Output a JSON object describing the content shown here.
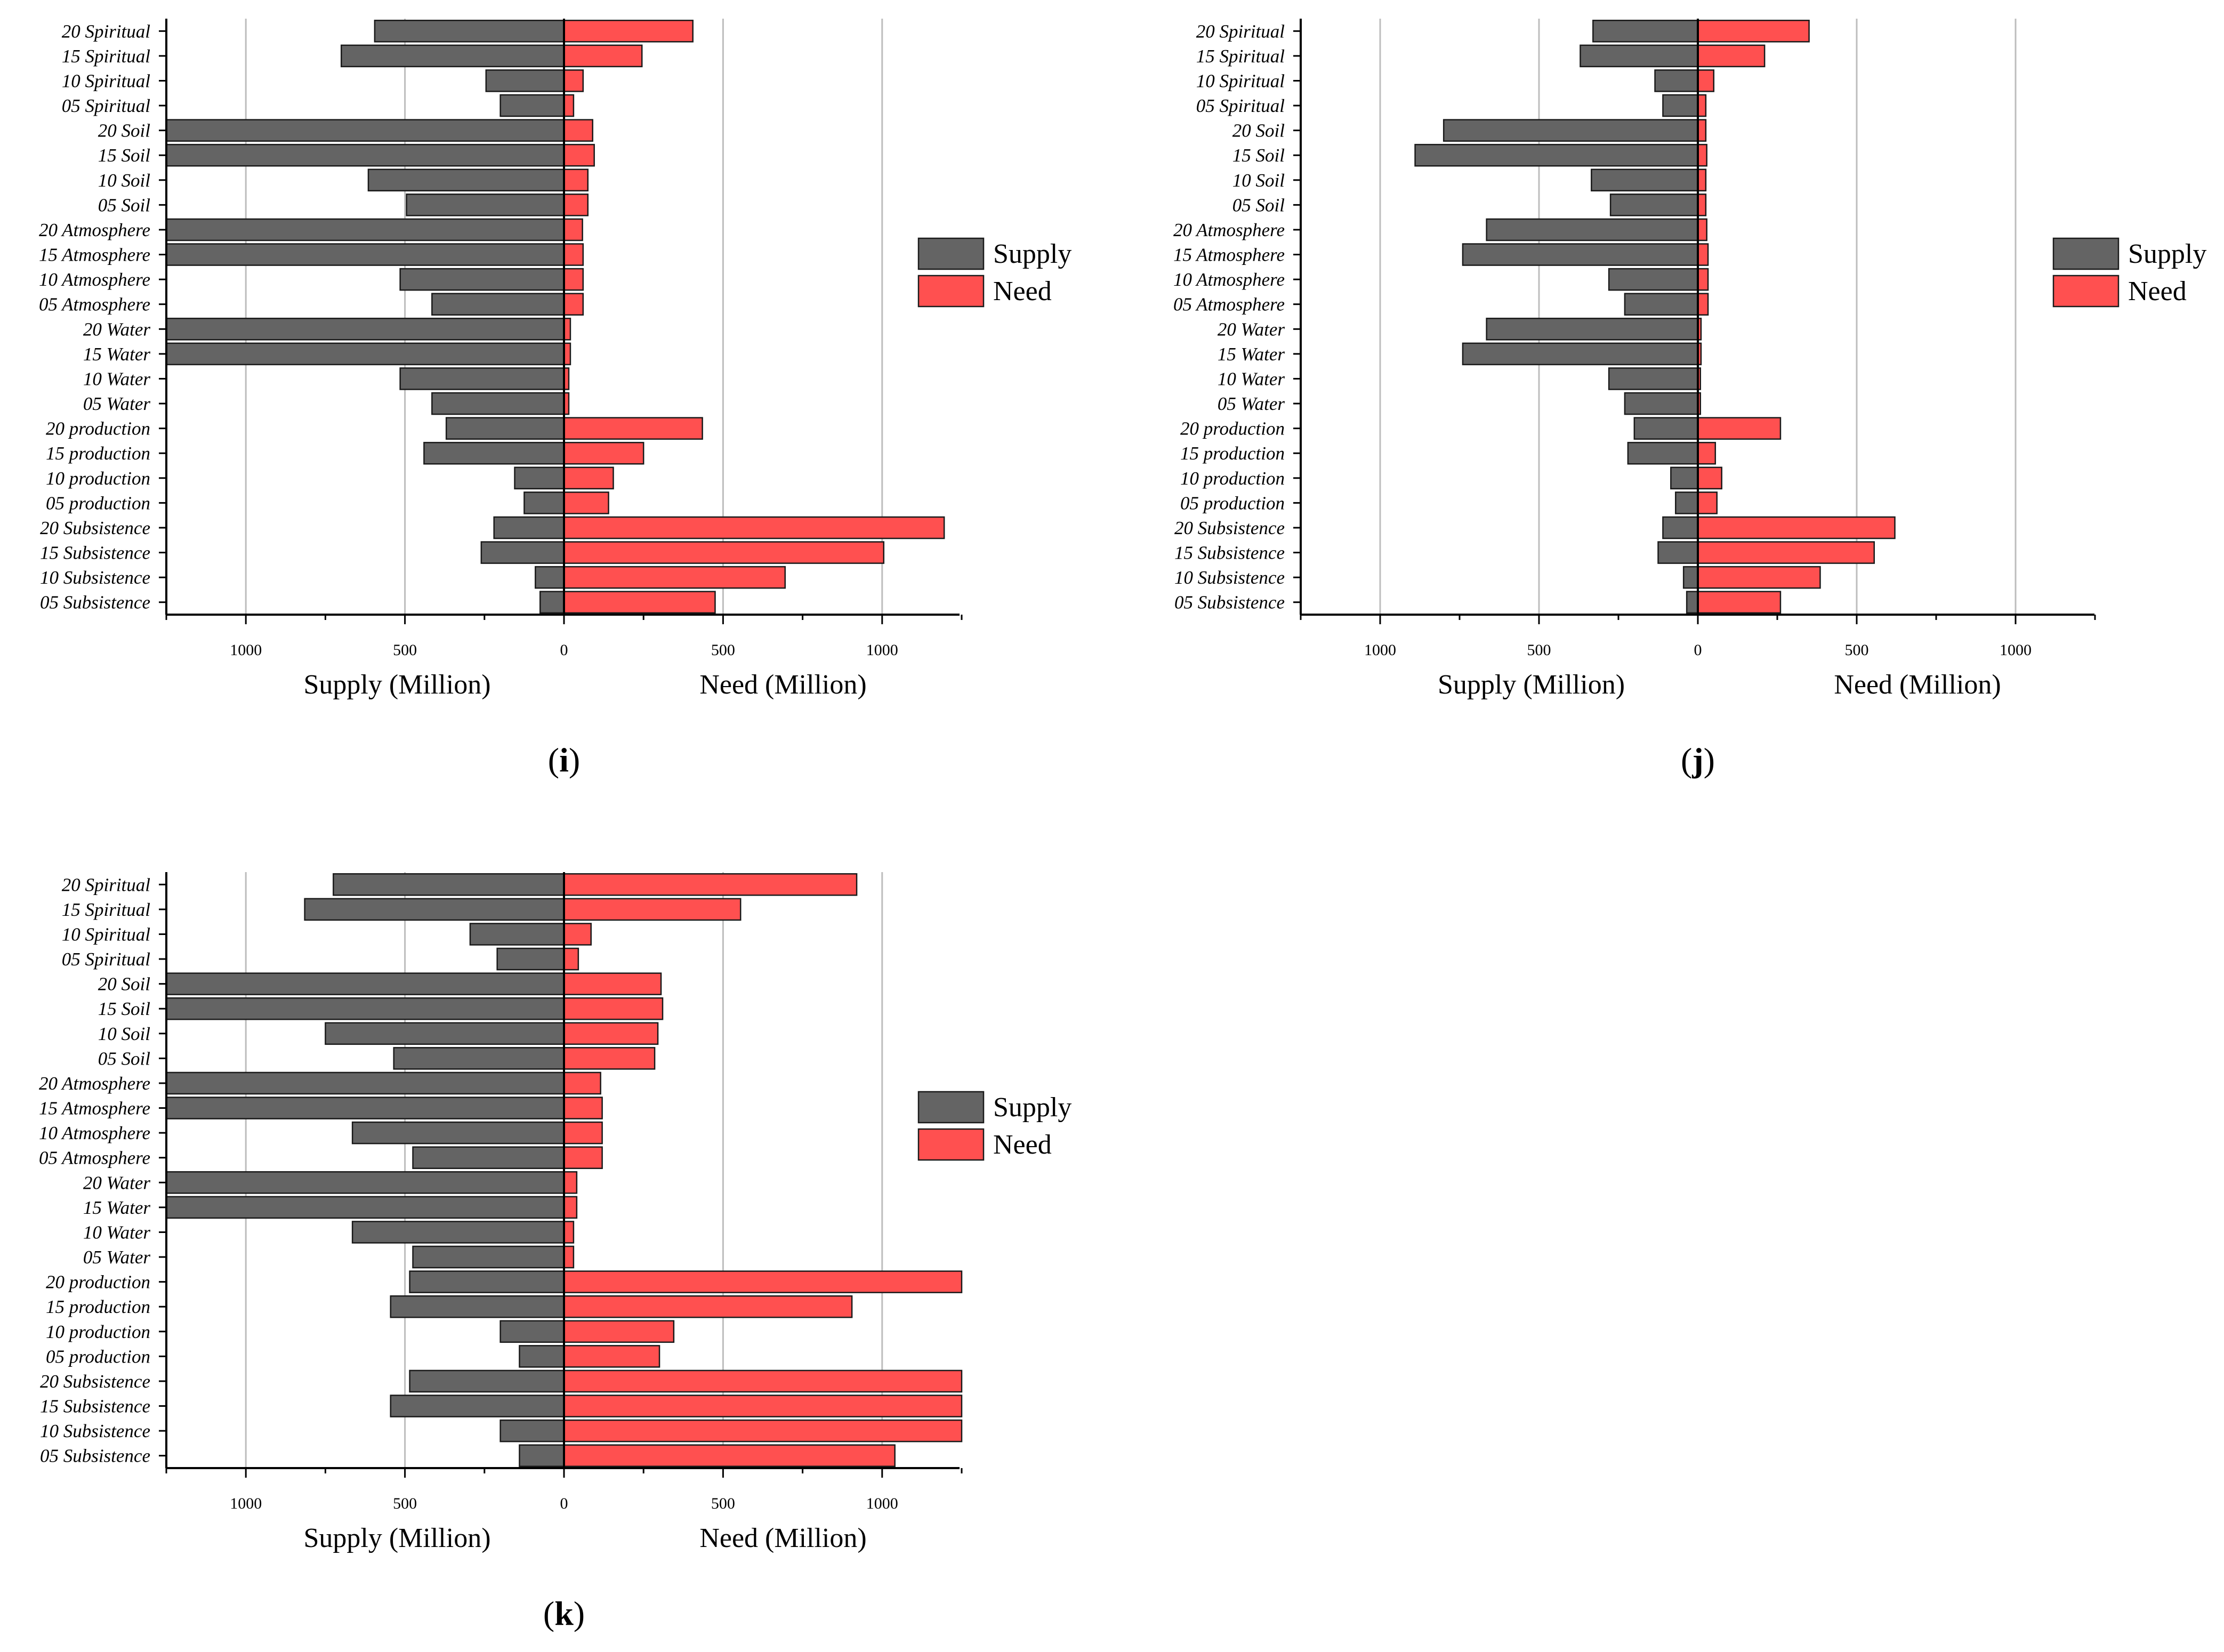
{
  "colors": {
    "supply": "#646464",
    "need": "#ff5050",
    "bar_stroke": "#1a1a1a",
    "grid": "#bdbdbd",
    "axis": "#000000"
  },
  "chart_data": [
    {
      "type": "bar",
      "orientation": "horizontal-diverging",
      "panel_label": "i",
      "categories": [
        "20 Spiritual",
        "15 Spiritual",
        "10 Spiritual",
        "05 Spiritual",
        "20 Soil",
        "15 Soil",
        "10 Soil",
        "05 Soil",
        "20 Atmosphere",
        "15 Atmosphere",
        "10 Atmosphere",
        "05 Atmosphere",
        "20 Water",
        "15 Water",
        "10 Water",
        "05 Water",
        "20 production",
        "15 production",
        "10 production",
        "05 production",
        "20 Subsistence",
        "15 Subsistence",
        "10 Subsistence",
        "05 Subsistence"
      ],
      "series": [
        {
          "name": "Supply",
          "values": [
            595,
            700,
            245,
            200,
            1250,
            1250,
            615,
            495,
            1250,
            1250,
            515,
            415,
            1250,
            1250,
            515,
            415,
            370,
            440,
            155,
            125,
            220,
            260,
            90,
            75
          ]
        },
        {
          "name": "Need",
          "values": [
            405,
            245,
            60,
            30,
            90,
            95,
            75,
            75,
            58,
            60,
            60,
            60,
            20,
            20,
            15,
            15,
            435,
            250,
            155,
            140,
            1195,
            1005,
            695,
            475
          ]
        }
      ],
      "xlim": [
        -1250,
        1250
      ],
      "ticks": [
        1000,
        500,
        0,
        500,
        1000
      ],
      "xlabel_left": "Supply (Million)",
      "xlabel_right": "Need (Million)",
      "legend": [
        "Supply",
        "Need"
      ]
    },
    {
      "type": "bar",
      "orientation": "horizontal-diverging",
      "panel_label": "j",
      "categories": [
        "20 Spiritual",
        "15 Spiritual",
        "10 Spiritual",
        "05 Spiritual",
        "20 Soil",
        "15 Soil",
        "10 Soil",
        "05 Soil",
        "20 Atmosphere",
        "15 Atmosphere",
        "10 Atmosphere",
        "05 Atmosphere",
        "20 Water",
        "15 Water",
        "10 Water",
        "05 Water",
        "20 production",
        "15 production",
        "10 production",
        "05 production",
        "20 Subsistence",
        "15 Subsistence",
        "10 Subsistence",
        "05 Subsistence"
      ],
      "series": [
        {
          "name": "Supply",
          "values": [
            330,
            370,
            135,
            110,
            800,
            890,
            335,
            275,
            665,
            740,
            280,
            230,
            665,
            740,
            280,
            230,
            200,
            220,
            85,
            70,
            110,
            125,
            45,
            35
          ]
        },
        {
          "name": "Need",
          "values": [
            350,
            210,
            50,
            25,
            25,
            28,
            25,
            25,
            28,
            32,
            32,
            32,
            10,
            10,
            8,
            8,
            260,
            55,
            75,
            60,
            620,
            555,
            385,
            260
          ]
        }
      ],
      "xlim": [
        -1250,
        1250
      ],
      "ticks": [
        1000,
        500,
        0,
        500,
        1000
      ],
      "xlabel_left": "Supply (Million)",
      "xlabel_right": "Need (Million)",
      "legend": [
        "Supply",
        "Need"
      ]
    },
    {
      "type": "bar",
      "orientation": "horizontal-diverging",
      "panel_label": "k",
      "categories": [
        "20 Spiritual",
        "15 Spiritual",
        "10 Spiritual",
        "05 Spiritual",
        "20 Soil",
        "15 Soil",
        "10 Soil",
        "05 Soil",
        "20 Atmosphere",
        "15 Atmosphere",
        "10 Atmosphere",
        "05 Atmosphere",
        "20 Water",
        "15 Water",
        "10 Water",
        "05 Water",
        "20 production",
        "15 production",
        "10 production",
        "05 production",
        "20 Subsistence",
        "15 Subsistence",
        "10 Subsistence",
        "05 Subsistence"
      ],
      "series": [
        {
          "name": "Supply",
          "values": [
            725,
            815,
            295,
            210,
            1250,
            1250,
            750,
            535,
            1250,
            1250,
            665,
            475,
            1250,
            1250,
            665,
            475,
            485,
            545,
            200,
            140,
            485,
            545,
            200,
            140
          ]
        },
        {
          "name": "Need",
          "values": [
            920,
            555,
            85,
            45,
            305,
            310,
            295,
            285,
            115,
            120,
            120,
            120,
            40,
            40,
            30,
            30,
            1250,
            905,
            345,
            300,
            1250,
            1250,
            1250,
            1040
          ]
        }
      ],
      "xlim": [
        -1250,
        1250
      ],
      "ticks": [
        1000,
        500,
        0,
        500,
        1000
      ],
      "xlabel_left": "Supply (Million)",
      "xlabel_right": "Need (Million)",
      "legend": [
        "Supply",
        "Need"
      ]
    }
  ]
}
